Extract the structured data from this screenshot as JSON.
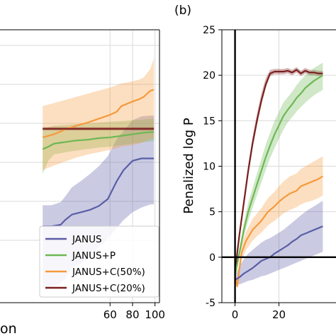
{
  "chart_data": [
    {
      "type": "line",
      "panel_label": "",
      "xlabel": "on",
      "ylabel": "",
      "xlim": [
        -38,
        104
      ],
      "ylim": [
        -8.0,
        27.0
      ],
      "xticks": [
        60,
        80,
        100
      ],
      "yticks": [],
      "grid": true,
      "legend": {
        "placement": "bottom-right",
        "entries": [
          "JANUS",
          "JANUS+P",
          "JANUS+C(50%)",
          "JANUS+C(20%)"
        ]
      },
      "series": [
        {
          "name": "JANUS",
          "color": "#5b5ea6",
          "x": [
            0,
            8,
            16,
            20,
            26,
            34,
            42,
            50,
            58,
            66,
            72,
            80,
            88,
            96,
            99
          ],
          "y": [
            1.8,
            1.8,
            2.0,
            2.6,
            3.3,
            3.6,
            3.9,
            4.4,
            5.3,
            7.6,
            9.0,
            10.2,
            10.5,
            10.5,
            10.5
          ],
          "lower": [
            -6.0,
            -6.0,
            -5.5,
            -5.0,
            -3.5,
            -3.0,
            -2.2,
            -0.8,
            0.2,
            1.6,
            2.6,
            3.6,
            4.2,
            4.6,
            4.6
          ],
          "upper": [
            4.5,
            4.5,
            4.9,
            5.6,
            6.8,
            7.6,
            8.5,
            9.5,
            10.8,
            13.0,
            14.0,
            15.4,
            15.9,
            16.0,
            16.0
          ]
        },
        {
          "name": "JANUS+P",
          "color": "#6db854",
          "x": [
            0,
            5,
            10,
            20,
            30,
            40,
            50,
            60,
            70,
            80,
            90,
            99
          ],
          "y": [
            11.7,
            12.0,
            12.4,
            12.6,
            12.8,
            12.9,
            13.1,
            13.2,
            13.4,
            13.6,
            13.8,
            13.9
          ],
          "lower": [
            8.5,
            10.2,
            11.0,
            11.3,
            11.5,
            11.7,
            11.9,
            12.0,
            12.2,
            12.4,
            12.6,
            12.7
          ],
          "upper": [
            14.3,
            14.5,
            14.7,
            14.8,
            14.9,
            15.0,
            15.1,
            15.2,
            15.3,
            15.4,
            15.5,
            15.6
          ]
        },
        {
          "name": "JANUS+C(50%)",
          "color": "#f59a3c",
          "x": [
            0,
            10,
            20,
            30,
            40,
            50,
            60,
            66,
            70,
            80,
            86,
            90,
            96,
            99
          ],
          "y": [
            13.2,
            13.6,
            14.2,
            14.7,
            15.1,
            15.6,
            16.1,
            16.5,
            17.2,
            17.8,
            18.1,
            18.4,
            19.2,
            19.3
          ],
          "lower": [
            9.0,
            9.6,
            10.1,
            10.6,
            11.0,
            11.3,
            11.6,
            11.8,
            12.0,
            12.2,
            12.4,
            12.6,
            13.0,
            13.1
          ],
          "upper": [
            17.2,
            17.6,
            18.0,
            18.4,
            18.8,
            19.2,
            19.6,
            19.9,
            20.1,
            20.4,
            20.6,
            20.9,
            22.0,
            23.4
          ]
        },
        {
          "name": "JANUS+C(20%)",
          "color": "#7b1f1f",
          "x": [
            0,
            99
          ],
          "y": [
            14.3,
            14.3
          ],
          "lower": [
            14.1,
            14.1
          ],
          "upper": [
            14.5,
            14.5
          ]
        }
      ]
    },
    {
      "type": "line",
      "panel_label": "(b)",
      "xlabel": "",
      "ylabel": "Penalized log P",
      "xlim": [
        -6,
        46
      ],
      "ylim": [
        -5,
        25
      ],
      "xticks": [
        0,
        20
      ],
      "yticks": [
        -5,
        0,
        5,
        10,
        15,
        20,
        25
      ],
      "grid": true,
      "series": [
        {
          "name": "JANUS+C(20%)",
          "color": "#7b1f1f",
          "x": [
            0,
            1,
            2,
            4,
            6,
            8,
            10,
            12,
            14,
            16,
            18,
            20,
            22,
            24,
            26,
            28,
            30,
            32,
            34,
            36,
            38,
            40
          ],
          "y": [
            -2.0,
            0.5,
            2.5,
            6.0,
            9.5,
            12.5,
            15.0,
            17.2,
            19.0,
            20.2,
            20.4,
            20.4,
            20.4,
            20.5,
            20.3,
            20.6,
            20.2,
            20.5,
            20.3,
            20.3,
            20.2,
            20.2
          ],
          "lower": [
            -2.2,
            0.0,
            2.0,
            5.5,
            9.0,
            12.0,
            14.5,
            16.8,
            18.6,
            19.9,
            20.1,
            20.1,
            20.1,
            20.2,
            20.0,
            20.3,
            19.9,
            20.2,
            20.0,
            20.0,
            19.9,
            19.9
          ],
          "upper": [
            -1.8,
            1.0,
            3.0,
            6.6,
            10.2,
            13.2,
            15.8,
            18.0,
            19.7,
            20.6,
            20.7,
            20.7,
            20.7,
            20.8,
            20.6,
            20.9,
            20.5,
            20.8,
            20.6,
            20.6,
            20.5,
            20.5
          ]
        },
        {
          "name": "JANUS+P",
          "color": "#6db854",
          "x": [
            0,
            2,
            4,
            6,
            8,
            10,
            12,
            14,
            16,
            18,
            20,
            22,
            24,
            26,
            28,
            30,
            32,
            34,
            36,
            38,
            40
          ],
          "y": [
            -2.0,
            0.5,
            3.0,
            5.0,
            6.5,
            8.0,
            9.5,
            11.0,
            12.3,
            13.5,
            14.5,
            15.5,
            16.2,
            16.8,
            17.5,
            18.0,
            18.6,
            19.0,
            19.4,
            19.7,
            20.0
          ],
          "lower": [
            -2.2,
            0.0,
            2.2,
            4.0,
            5.4,
            6.8,
            8.2,
            9.6,
            10.9,
            12.0,
            13.0,
            14.0,
            14.8,
            15.4,
            16.0,
            16.5,
            17.0,
            17.4,
            17.8,
            18.1,
            18.4
          ],
          "upper": [
            -1.8,
            1.0,
            3.8,
            6.0,
            7.6,
            9.2,
            10.8,
            12.4,
            13.7,
            15.0,
            16.0,
            17.0,
            17.6,
            18.2,
            18.9,
            19.5,
            20.0,
            20.4,
            20.8,
            21.1,
            21.4
          ]
        },
        {
          "name": "JANUS+C(50%)",
          "color": "#f59a3c",
          "x": [
            0,
            1,
            2,
            3,
            5,
            8,
            10,
            12,
            15,
            18,
            20,
            22,
            25,
            28,
            30,
            32,
            35,
            38,
            40
          ],
          "y": [
            -2.0,
            -3.2,
            -1.2,
            0.5,
            1.8,
            3.0,
            3.5,
            4.0,
            5.0,
            5.6,
            6.1,
            6.5,
            7.0,
            7.3,
            7.8,
            8.0,
            8.3,
            8.6,
            8.9
          ],
          "lower": [
            -2.3,
            -3.4,
            -1.8,
            -0.3,
            0.8,
            1.8,
            2.3,
            2.7,
            3.5,
            4.0,
            4.4,
            4.8,
            5.2,
            5.5,
            5.8,
            6.0,
            6.2,
            6.5,
            6.8
          ],
          "upper": [
            -1.7,
            -2.8,
            -0.6,
            1.3,
            2.8,
            4.2,
            4.8,
            5.4,
            6.5,
            7.2,
            7.8,
            8.3,
            8.9,
            9.2,
            9.7,
            10.0,
            10.4,
            10.8,
            11.1
          ]
        },
        {
          "name": "JANUS",
          "color": "#5b5ea6",
          "x": [
            0,
            2,
            4,
            6,
            8,
            10,
            12,
            14,
            16,
            18,
            20,
            22,
            24,
            26,
            28,
            30,
            32,
            34,
            36,
            38,
            40
          ],
          "y": [
            -2.5,
            -2.2,
            -1.8,
            -1.5,
            -1.2,
            -0.8,
            -0.4,
            -0.2,
            0.0,
            0.4,
            0.7,
            1.0,
            1.3,
            1.7,
            2.0,
            2.4,
            2.6,
            2.8,
            3.0,
            3.2,
            3.4
          ],
          "lower": [
            -3.0,
            -3.0,
            -2.8,
            -2.6,
            -2.5,
            -2.3,
            -2.1,
            -2.0,
            -1.8,
            -1.6,
            -1.4,
            -1.2,
            -1.0,
            -0.8,
            -0.6,
            -0.4,
            -0.2,
            0.0,
            0.2,
            0.4,
            0.6
          ],
          "upper": [
            -2.0,
            -1.0,
            -0.2,
            0.4,
            0.8,
            1.2,
            1.6,
            1.9,
            2.1,
            2.4,
            2.7,
            3.0,
            3.4,
            3.8,
            4.2,
            4.6,
            5.0,
            5.3,
            5.6,
            5.9,
            6.2
          ]
        }
      ]
    }
  ]
}
